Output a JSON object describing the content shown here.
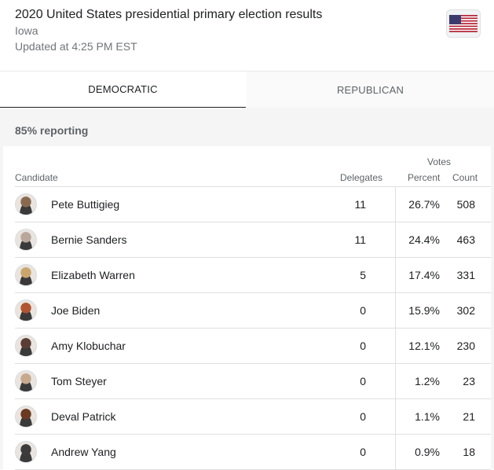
{
  "header": {
    "title": "2020 United States presidential primary election results",
    "subtitle": "Iowa",
    "updated": "Updated at 4:25 PM EST",
    "flag_icon": "us-flag-icon"
  },
  "tabs": [
    {
      "label": "DEMOCRATIC",
      "selected": true
    },
    {
      "label": "REPUBLICAN",
      "selected": false
    }
  ],
  "reporting": "85% reporting",
  "table": {
    "votes_header": "Votes",
    "columns": {
      "candidate": "Candidate",
      "delegates": "Delegates",
      "percent": "Percent",
      "count": "Count"
    },
    "rows": [
      {
        "name": "Pete Buttigieg",
        "delegates": "11",
        "percent": "26.7%",
        "count": "508",
        "avatar_color": "#8a6a4f"
      },
      {
        "name": "Bernie Sanders",
        "delegates": "11",
        "percent": "24.4%",
        "count": "463",
        "avatar_color": "#b9a79b"
      },
      {
        "name": "Elizabeth Warren",
        "delegates": "5",
        "percent": "17.4%",
        "count": "331",
        "avatar_color": "#c9a66b"
      },
      {
        "name": "Joe Biden",
        "delegates": "0",
        "percent": "15.9%",
        "count": "302",
        "avatar_color": "#b0552f"
      },
      {
        "name": "Amy Klobuchar",
        "delegates": "0",
        "percent": "12.1%",
        "count": "230",
        "avatar_color": "#5a3d33"
      },
      {
        "name": "Tom Steyer",
        "delegates": "0",
        "percent": "1.2%",
        "count": "23",
        "avatar_color": "#c7a98d"
      },
      {
        "name": "Deval Patrick",
        "delegates": "0",
        "percent": "1.1%",
        "count": "21",
        "avatar_color": "#6b3a22"
      },
      {
        "name": "Andrew Yang",
        "delegates": "0",
        "percent": "0.9%",
        "count": "18",
        "avatar_color": "#3c3c3c"
      }
    ]
  }
}
